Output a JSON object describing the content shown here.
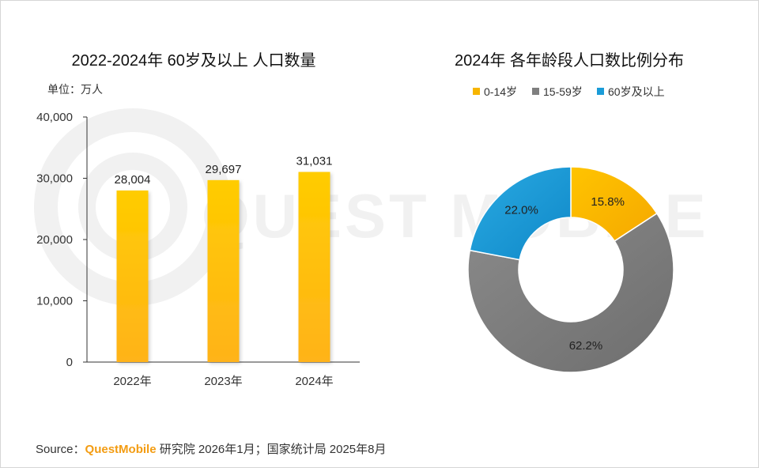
{
  "charts_header": {
    "left_title": "2022-2024年 60岁及以上 人口数量",
    "unit": "单位：万人",
    "right_title": "2024年 各年龄段人口数比例分布"
  },
  "watermark": {
    "text": "QUEST MOBILE"
  },
  "source": {
    "prefix": "Source：",
    "brand": "QuestMobile",
    "rest": " 研究院 2026年1月；国家统计局 2025年8月"
  },
  "colors": {
    "bar": "#ffc107",
    "slice_0_14": "#f7b500",
    "slice_15_59": "#7f7f7f",
    "slice_60_plus": "#1a9cd8"
  },
  "chart_data": [
    {
      "type": "bar",
      "title": "2022-2024年 60岁及以上 人口数量",
      "ylabel": "单位：万人",
      "categories": [
        "2022年",
        "2023年",
        "2024年"
      ],
      "values": [
        28004,
        29697,
        31031
      ],
      "value_labels": [
        "28,004",
        "29,697",
        "31,031"
      ],
      "ylim": [
        0,
        40000
      ],
      "yticks": [
        0,
        10000,
        20000,
        30000,
        40000
      ],
      "ytick_labels": [
        "0",
        "10,000",
        "20,000",
        "30,000",
        "40,000"
      ],
      "grid": false
    },
    {
      "type": "pie",
      "title": "2024年 各年龄段人口数比例分布",
      "donut": true,
      "legend_position": "top",
      "labels": [
        "0-14岁",
        "15-59岁",
        "60岁及以上"
      ],
      "values": [
        15.8,
        62.2,
        22.0
      ],
      "value_labels": [
        "15.8%",
        "62.2%",
        "22.0%"
      ]
    }
  ]
}
